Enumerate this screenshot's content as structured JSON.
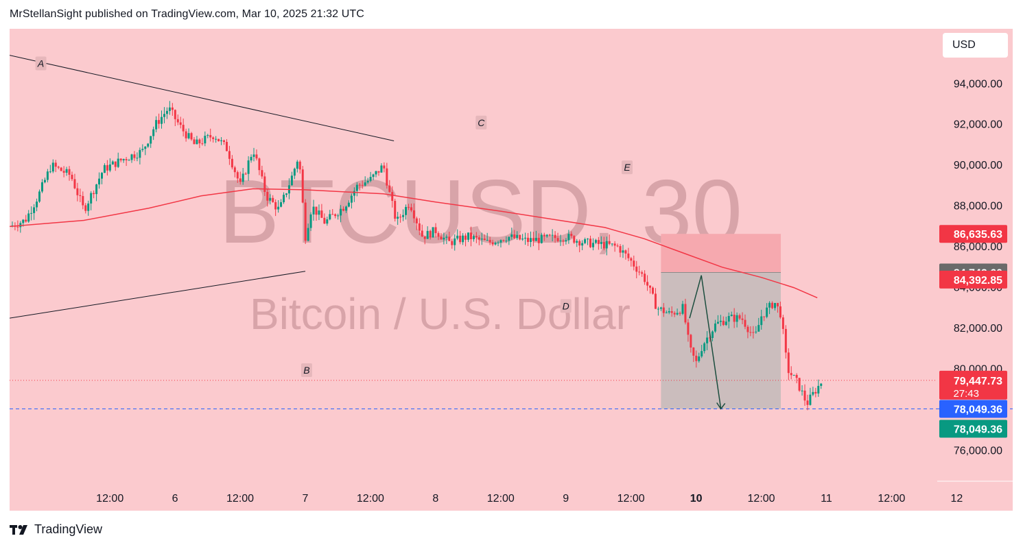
{
  "header": {
    "text": "MrStellanSight published on TradingView.com, Mar 10, 2025 21:32 UTC"
  },
  "watermark": {
    "symbol": "BTCUSD, 30",
    "description": "Bitcoin / U.S. Dollar"
  },
  "currency_label": "USD",
  "footer": {
    "brand": "TradingView"
  },
  "colors": {
    "background": "#fbcace",
    "up": "#089981",
    "down": "#f23645",
    "ma": "#f23645",
    "current_price": "#f23645",
    "blue_line": "#2962ff",
    "green_label": "#089981",
    "gray_label": "#6a6a6a"
  },
  "chart_data": {
    "type": "candlestick",
    "symbol": "BTCUSD",
    "interval": "30",
    "y_axis": {
      "ticks": [
        94000,
        92000,
        90000,
        88000,
        86000,
        84000,
        82000,
        80000,
        76000
      ],
      "range": [
        74500,
        96700
      ]
    },
    "x_axis": {
      "ticks": [
        {
          "label": "12:00",
          "t": 0.5
        },
        {
          "label": "6",
          "t": 1
        },
        {
          "label": "12:00",
          "t": 1.5
        },
        {
          "label": "7",
          "t": 2
        },
        {
          "label": "12:00",
          "t": 2.5
        },
        {
          "label": "8",
          "t": 3
        },
        {
          "label": "12:00",
          "t": 3.5
        },
        {
          "label": "9",
          "t": 4
        },
        {
          "label": "12:00",
          "t": 4.5
        },
        {
          "label": "10",
          "t": 5,
          "bold": true
        },
        {
          "label": "12:00",
          "t": 5.5
        },
        {
          "label": "11",
          "t": 6
        },
        {
          "label": "12:00",
          "t": 6.5
        },
        {
          "label": "12",
          "t": 7
        }
      ],
      "range": [
        -0.27,
        7.43
      ]
    },
    "price_path": [
      [
        -0.27,
        87000
      ],
      [
        -0.15,
        87300
      ],
      [
        -0.05,
        88500
      ],
      [
        0.05,
        90000
      ],
      [
        0.2,
        89500
      ],
      [
        0.3,
        87800
      ],
      [
        0.45,
        89800
      ],
      [
        0.6,
        90300
      ],
      [
        0.75,
        90700
      ],
      [
        0.85,
        92000
      ],
      [
        0.95,
        92800
      ],
      [
        1.05,
        91800
      ],
      [
        1.15,
        91000
      ],
      [
        1.3,
        91500
      ],
      [
        1.4,
        90800
      ],
      [
        1.5,
        89000
      ],
      [
        1.6,
        90800
      ],
      [
        1.7,
        88500
      ],
      [
        1.8,
        87800
      ],
      [
        1.9,
        89500
      ],
      [
        1.95,
        90500
      ],
      [
        2.0,
        86500
      ],
      [
        2.05,
        88000
      ],
      [
        2.15,
        87200
      ],
      [
        2.3,
        88000
      ],
      [
        2.4,
        89000
      ],
      [
        2.5,
        89300
      ],
      [
        2.6,
        90000
      ],
      [
        2.65,
        88500
      ],
      [
        2.7,
        87200
      ],
      [
        2.8,
        88200
      ],
      [
        2.9,
        86500
      ],
      [
        3.0,
        86800
      ],
      [
        3.1,
        86200
      ],
      [
        3.25,
        86500
      ],
      [
        3.4,
        86200
      ],
      [
        3.55,
        86500
      ],
      [
        3.7,
        86300
      ],
      [
        3.85,
        86400
      ],
      [
        4.0,
        86500
      ],
      [
        4.15,
        86200
      ],
      [
        4.3,
        86100
      ],
      [
        4.4,
        86000
      ],
      [
        4.5,
        85300
      ],
      [
        4.6,
        84500
      ],
      [
        4.7,
        83000
      ],
      [
        4.8,
        82700
      ],
      [
        4.9,
        83000
      ],
      [
        4.95,
        81000
      ],
      [
        5.0,
        80300
      ],
      [
        5.05,
        81200
      ],
      [
        5.15,
        82200
      ],
      [
        5.25,
        82500
      ],
      [
        5.35,
        82500
      ],
      [
        5.45,
        81500
      ],
      [
        5.5,
        82600
      ],
      [
        5.6,
        83300
      ],
      [
        5.65,
        82700
      ],
      [
        5.7,
        80000
      ],
      [
        5.78,
        79300
      ],
      [
        5.85,
        78300
      ],
      [
        5.9,
        78800
      ],
      [
        5.97,
        79447.73
      ]
    ],
    "moving_average": [
      [
        -0.27,
        87000
      ],
      [
        0.3,
        87300
      ],
      [
        0.8,
        87900
      ],
      [
        1.2,
        88500
      ],
      [
        1.6,
        88850
      ],
      [
        2.0,
        88800
      ],
      [
        2.6,
        88600
      ],
      [
        3.0,
        88200
      ],
      [
        3.5,
        87750
      ],
      [
        4.0,
        87250
      ],
      [
        4.3,
        86950
      ],
      [
        4.6,
        86400
      ],
      [
        4.9,
        85700
      ],
      [
        5.2,
        85000
      ],
      [
        5.5,
        84500
      ],
      [
        5.75,
        84000
      ],
      [
        5.93,
        83500
      ]
    ],
    "price_labels": [
      {
        "value": 86635.63,
        "text": "86,635.63",
        "color": "#f23645"
      },
      {
        "value": 84742.6,
        "text": "84,742.60",
        "color": "#6a6a6a"
      },
      {
        "value": 84392.85,
        "text": "84,392.85",
        "color": "#f23645"
      },
      {
        "value": 79447.73,
        "text": "79,447.73",
        "subtext": "27:43",
        "color": "#f23645"
      },
      {
        "value": 78049.36,
        "text": "78,049.36",
        "color": "#2962ff"
      },
      {
        "value": 78049.36,
        "text": "78,049.36",
        "color": "#089981",
        "offset": 1
      }
    ],
    "current_price": 79447.73,
    "horizontal_line": 78049.36,
    "position_box": {
      "t_start": 4.73,
      "t_end": 5.65,
      "entry": 84742.6,
      "stop": 86635.63,
      "target": 78049.36
    },
    "trend_lines": [
      {
        "from": [
          -0.27,
          95400
        ],
        "to": [
          2.68,
          91200
        ]
      },
      {
        "from": [
          -0.27,
          82500
        ],
        "to": [
          2.0,
          84800
        ]
      }
    ],
    "arrow_path": [
      [
        4.95,
        82500
      ],
      [
        5.04,
        84600
      ],
      [
        5.19,
        78049.36
      ]
    ],
    "point_labels": [
      {
        "text": "A",
        "t": -0.03,
        "price": 95000
      },
      {
        "text": "B",
        "t": 2.01,
        "price": 79950
      },
      {
        "text": "C",
        "t": 3.35,
        "price": 92100
      },
      {
        "text": "D",
        "t": 4.0,
        "price": 83100
      },
      {
        "text": "E",
        "t": 4.47,
        "price": 89900
      }
    ]
  }
}
